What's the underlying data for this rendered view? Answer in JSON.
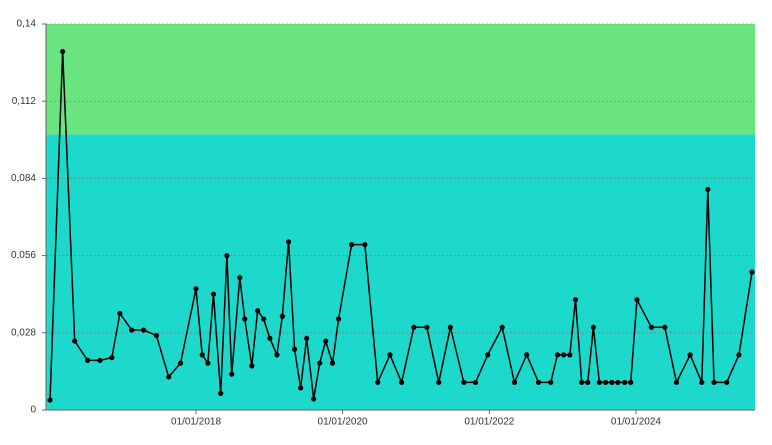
{
  "chart_data": {
    "type": "line",
    "x": [
      "2016-01-05",
      "2016-03-08",
      "2016-05-07",
      "2016-07-10",
      "2016-09-10",
      "2016-11-08",
      "2016-12-18",
      "2017-02-15",
      "2017-04-15",
      "2017-06-18",
      "2017-08-18",
      "2017-10-16",
      "2018-01-01",
      "2018-02-01",
      "2018-03-01",
      "2018-03-29",
      "2018-05-04",
      "2018-06-04",
      "2018-06-28",
      "2018-08-07",
      "2018-09-01",
      "2018-10-06",
      "2018-11-04",
      "2018-12-04",
      "2019-01-04",
      "2019-02-08",
      "2019-03-07",
      "2019-04-07",
      "2019-05-07",
      "2019-06-06",
      "2019-07-06",
      "2019-08-10",
      "2019-09-09",
      "2019-10-09",
      "2019-11-12",
      "2019-12-12",
      "2020-02-15",
      "2020-04-21",
      "2020-06-24",
      "2020-08-24",
      "2020-10-21",
      "2020-12-21",
      "2021-02-24",
      "2021-04-24",
      "2021-06-21",
      "2021-08-27",
      "2021-10-24",
      "2021-12-24",
      "2022-03-06",
      "2022-05-06",
      "2022-07-06",
      "2022-09-03",
      "2022-11-03",
      "2022-12-06",
      "2023-01-06",
      "2023-02-06",
      "2023-03-06",
      "2023-04-06",
      "2023-05-06",
      "2023-06-03",
      "2023-07-03",
      "2023-08-03",
      "2023-09-03",
      "2023-10-03",
      "2023-11-06",
      "2023-12-06",
      "2024-01-06",
      "2024-03-18",
      "2024-05-24",
      "2024-07-21",
      "2024-09-27",
      "2024-11-24",
      "2024-12-24",
      "2025-01-24",
      "2025-03-28",
      "2025-05-28",
      "2025-08-01"
    ],
    "series": [
      {
        "color": "#000000",
        "values": [
          0.0036,
          0.13,
          0.025,
          0.018,
          0.018,
          0.019,
          0.035,
          0.029,
          0.029,
          0.027,
          0.012,
          0.017,
          0.044,
          0.02,
          0.017,
          0.042,
          0.006,
          0.056,
          0.013,
          0.048,
          0.033,
          0.016,
          0.036,
          0.033,
          0.026,
          0.02,
          0.034,
          0.061,
          0.022,
          0.008,
          0.026,
          0.004,
          0.017,
          0.025,
          0.017,
          0.033,
          0.06,
          0.06,
          0.01,
          0.02,
          0.01,
          0.03,
          0.03,
          0.01,
          0.03,
          0.01,
          0.01,
          0.02,
          0.03,
          0.01,
          0.02,
          0.01,
          0.01,
          0.02,
          0.02,
          0.02,
          0.04,
          0.01,
          0.01,
          0.03,
          0.01,
          0.01,
          0.01,
          0.01,
          0.01,
          0.01,
          0.04,
          0.03,
          0.03,
          0.01,
          0.02,
          0.01,
          0.08,
          0.01,
          0.01,
          0.02,
          0.05
        ]
      }
    ],
    "xlim": [
      "2015-12-16",
      "2025-08-16"
    ],
    "xticks": [
      {
        "value": "2018-01-01",
        "label": "01/01/2018"
      },
      {
        "value": "2020-01-01",
        "label": "01/01/2020"
      },
      {
        "value": "2022-01-01",
        "label": "01/01/2022"
      },
      {
        "value": "2024-01-01",
        "label": "01/01/2024"
      }
    ],
    "ylim": [
      0,
      0.14
    ],
    "yticks": [
      0,
      {
        "value": 0.028,
        "label": "0,028"
      },
      {
        "value": 0.056,
        "label": "0,056"
      },
      {
        "value": 0.084,
        "label": "0,084"
      },
      {
        "value": 0.112,
        "label": "0,112"
      },
      {
        "value": 0.14,
        "label": "0,14"
      }
    ],
    "bands": [
      {
        "from": 0,
        "to": 0.1,
        "color": "#1dd9cc"
      },
      {
        "from": 0.1,
        "to": 0.14,
        "color": "#6ae47f"
      }
    ],
    "grid": true
  }
}
